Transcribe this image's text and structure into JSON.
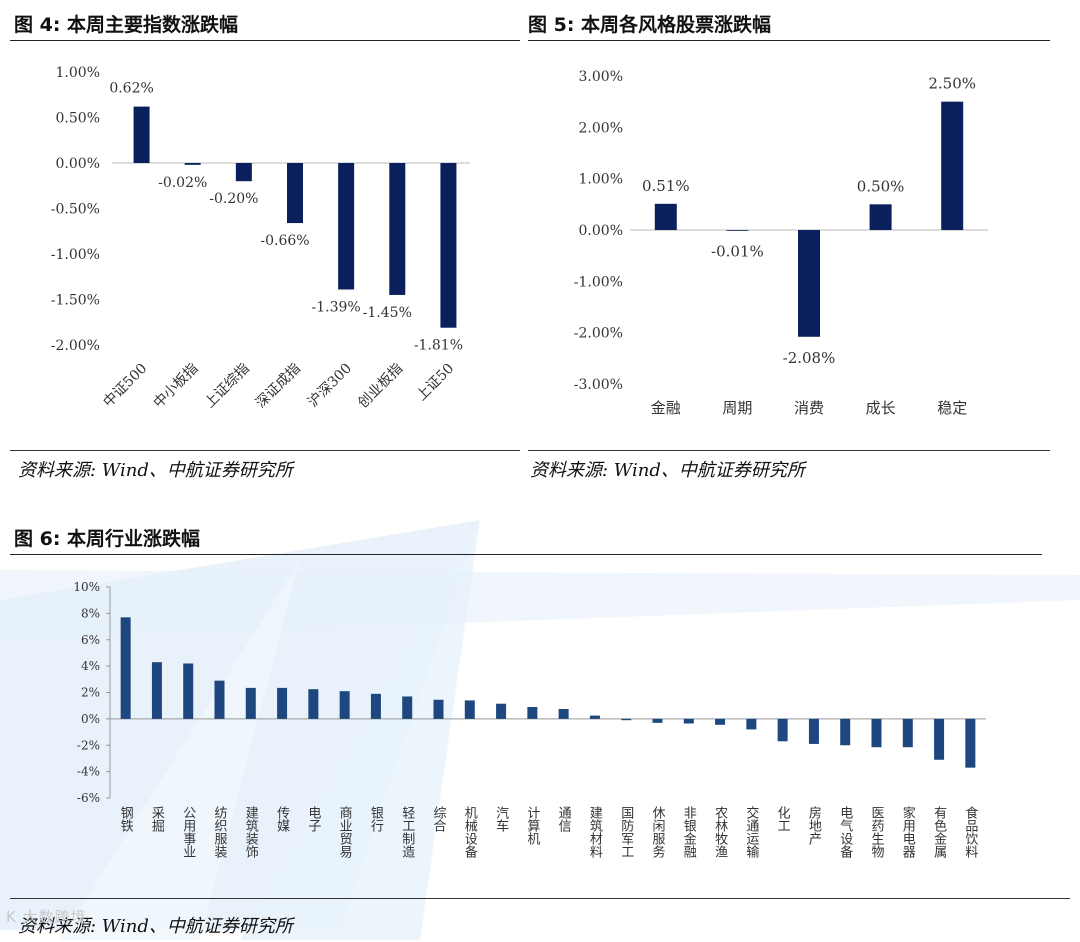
{
  "figures": {
    "fig4_title": "图 4: 本周主要指数涨跌幅",
    "fig5_title": "图 5: 本周各风格股票涨跌幅",
    "fig6_title": "图 6: 本周行业涨跌幅",
    "source_left": "资料来源: Wind、中航证券研究所",
    "source_right": "资料来源: Wind、中航证券研究所",
    "source_bottom": "资料来源: Wind、中航证券研究所",
    "logo_text": "K 大数跨境"
  },
  "colors": {
    "bar_navy": "#0b1f5c",
    "bar_blue": "#1f477f",
    "watermark": "#dbe9f6"
  },
  "chart_data": [
    {
      "type": "bar",
      "title": "",
      "categories": [
        "中证500",
        "中小板指",
        "上证综指",
        "深证成指",
        "沪深300",
        "创业板指",
        "上证50"
      ],
      "values": [
        0.62,
        -0.02,
        -0.2,
        -0.66,
        -1.39,
        -1.45,
        -1.81
      ],
      "data_labels": [
        "0.62%",
        "-0.02%",
        "-0.20%",
        "-0.66%",
        "-1.39%",
        "-1.45%",
        "-1.81%"
      ],
      "ylim": [
        -2.0,
        1.0
      ],
      "yticks": [
        "1.00%",
        "0.50%",
        "0.00%",
        "-0.50%",
        "-1.00%",
        "-1.50%",
        "-2.00%"
      ],
      "xlabel": "",
      "ylabel": "",
      "grid": false
    },
    {
      "type": "bar",
      "title": "",
      "categories": [
        "金融",
        "周期",
        "消费",
        "成长",
        "稳定"
      ],
      "values": [
        0.51,
        -0.01,
        -2.08,
        0.5,
        2.5
      ],
      "data_labels": [
        "0.51%",
        "-0.01%",
        "-2.08%",
        "0.50%",
        "2.50%"
      ],
      "ylim": [
        -3.0,
        3.0
      ],
      "yticks": [
        "3.00%",
        "2.00%",
        "1.00%",
        "0.00%",
        "-1.00%",
        "-2.00%",
        "-3.00%"
      ],
      "xlabel": "",
      "ylabel": "",
      "grid": false
    },
    {
      "type": "bar",
      "title": "",
      "categories": [
        "钢铁",
        "采掘",
        "公用事业",
        "纺织服装",
        "建筑装饰",
        "传媒",
        "电子",
        "商业贸易",
        "银行",
        "轻工制造",
        "综合",
        "机械设备",
        "汽车",
        "计算机",
        "通信",
        "建筑材料",
        "国防军工",
        "休闲服务",
        "非银金融",
        "农林牧渔",
        "交通运输",
        "化工",
        "房地产",
        "电气设备",
        "医药生物",
        "家用电器",
        "有色金属",
        "食品饮料"
      ],
      "values": [
        7.7,
        4.3,
        4.2,
        2.9,
        2.35,
        2.35,
        2.25,
        2.1,
        1.9,
        1.7,
        1.45,
        1.4,
        1.15,
        0.9,
        0.75,
        0.25,
        -0.1,
        -0.3,
        -0.35,
        -0.45,
        -0.8,
        -1.7,
        -1.9,
        -2.0,
        -2.15,
        -2.15,
        -3.1,
        -3.7
      ],
      "ylim": [
        -6,
        10
      ],
      "yticks": [
        "10%",
        "8%",
        "6%",
        "4%",
        "2%",
        "0%",
        "-2%",
        "-4%",
        "-6%"
      ],
      "xlabel": "",
      "ylabel": "",
      "grid": false
    }
  ]
}
